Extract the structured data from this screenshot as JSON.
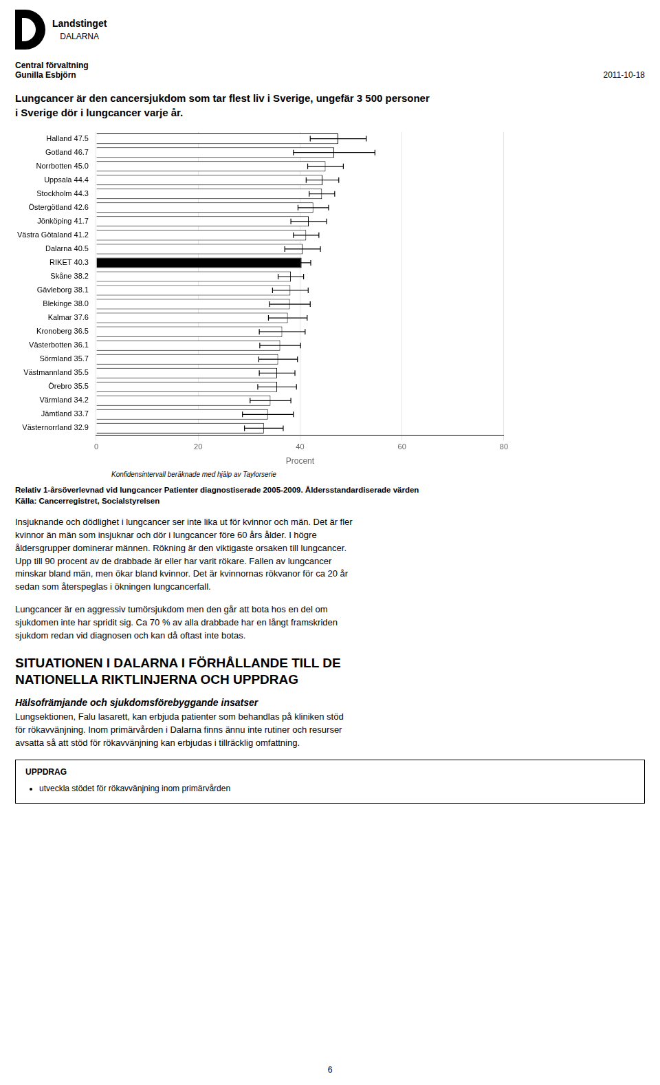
{
  "chart_data": {
    "type": "bar",
    "orientation": "horizontal",
    "title": "Relativ 1-årsöverlevnad vid lungcancer Patienter diagnostiserade 2005-2009. Åldersstandardiserade värden",
    "xlabel": "Procent",
    "annotations": [
      "Konfidensintervall beräknade med hjälp av Taylorserie",
      "Källa: Cancerregistret, Socialstyrelsen"
    ],
    "categories": [
      "Halland 47.5",
      "Gotland 46.7",
      "Norrbotten 45.0",
      "Uppsala 44.4",
      "Stockholm 44.3",
      "Östergötland 42.6",
      "Jönköping 41.7",
      "Västra Götaland 41.2",
      "Dalarna 40.5",
      "RIKET 40.3",
      "Skåne 38.2",
      "Gävleborg 38.1",
      "Blekinge 38.0",
      "Kalmar 37.6",
      "Kronoberg 36.5",
      "Västerbotten 36.1",
      "Sörmland 35.7",
      "Västmannland 35.5",
      "Örebro 35.5",
      "Värmland 34.2",
      "Jämtland 33.7",
      "Västernorrland 32.9"
    ],
    "values": [
      47.5,
      46.7,
      45.0,
      44.4,
      44.3,
      42.6,
      41.7,
      41.2,
      40.5,
      40.3,
      38.2,
      38.1,
      38.0,
      37.6,
      36.5,
      36.1,
      35.7,
      35.5,
      35.5,
      34.2,
      33.7,
      32.9
    ],
    "error_bars": [
      5.5,
      8.0,
      3.5,
      3.2,
      2.5,
      3.0,
      3.5,
      2.5,
      3.5,
      1.8,
      2.5,
      3.5,
      4.0,
      3.8,
      4.5,
      4.0,
      3.8,
      3.5,
      3.8,
      4.0,
      5.0,
      3.8
    ],
    "colors": [
      "#ffffff",
      "#ffffff",
      "#ffffff",
      "#ffffff",
      "#ffffff",
      "#ffffff",
      "#ffffff",
      "#ffffff",
      "#ffffff",
      "#000000",
      "#ffffff",
      "#ffffff",
      "#ffffff",
      "#ffffff",
      "#ffffff",
      "#ffffff",
      "#ffffff",
      "#ffffff",
      "#ffffff",
      "#ffffff",
      "#ffffff",
      "#ffffff"
    ],
    "xlim": [
      0,
      80
    ],
    "xticks": [
      0,
      20,
      40,
      60,
      80
    ],
    "grid": true
  },
  "page": {
    "logo_lines": [
      "Landstinget",
      "DALARNA"
    ],
    "header_left": [
      "Central förvaltning",
      "Gunilla Esbjörn"
    ],
    "header_date": "2011-10-18",
    "intro_lines": [
      "Lungcancer är den cancersjukdom som tar flest liv i Sverige, ungefär 3 500 personer",
      "i Sverige dör i lungcancer varje år."
    ],
    "paragraphs": [
      "Insjuknande och dödlighet i lungcancer ser inte lika ut för kvinnor och män. Det är fler\nkvinnor än män som insjuknar och dör i lungcancer före 60 års ålder. I högre\nåldersgrupper dominerar männen. Rökning är den viktigaste orsaken till lungcancer.\nUpp till 90 procent av de drabbade är eller har varit rökare. Fallen av lungcancer\nminskar bland män, men ökar bland kvinnor. Det är kvinnornas rökvanor för ca 20 år\nsedan som återspeglas i ökningen lungcancerfall.",
      "Lungcancer är en aggressiv tumörsjukdom men den går att bota hos en del om\nsjukdomen inte har spridit sig. Ca 70 % av alla drabbade har en långt framskriden\nsjukdom redan vid diagnosen och kan då oftast inte botas."
    ],
    "section_title_lines": [
      "SITUATIONEN I DALARNA I FÖRHÅLLANDE TILL DE",
      "NATIONELLA RIKTLINJERNA OCH UPPDRAG"
    ],
    "subsection_title": "Hälsofrämjande och sjukdomsförebyggande insatser",
    "subsection_text": "Lungsektionen, Falu lasarett, kan erbjuda patienter som behandlas på kliniken stöd\nför rökavvänjning. Inom primärvården i Dalarna finns ännu inte rutiner och resurser\navsatta så att stöd för rökavvänjning kan erbjudas i tillräcklig omfattning.",
    "box_title": "UPPDRAG",
    "box_bullets": [
      "utveckla stödet för rökavvänjning inom primärvården"
    ],
    "page_number": "6"
  }
}
